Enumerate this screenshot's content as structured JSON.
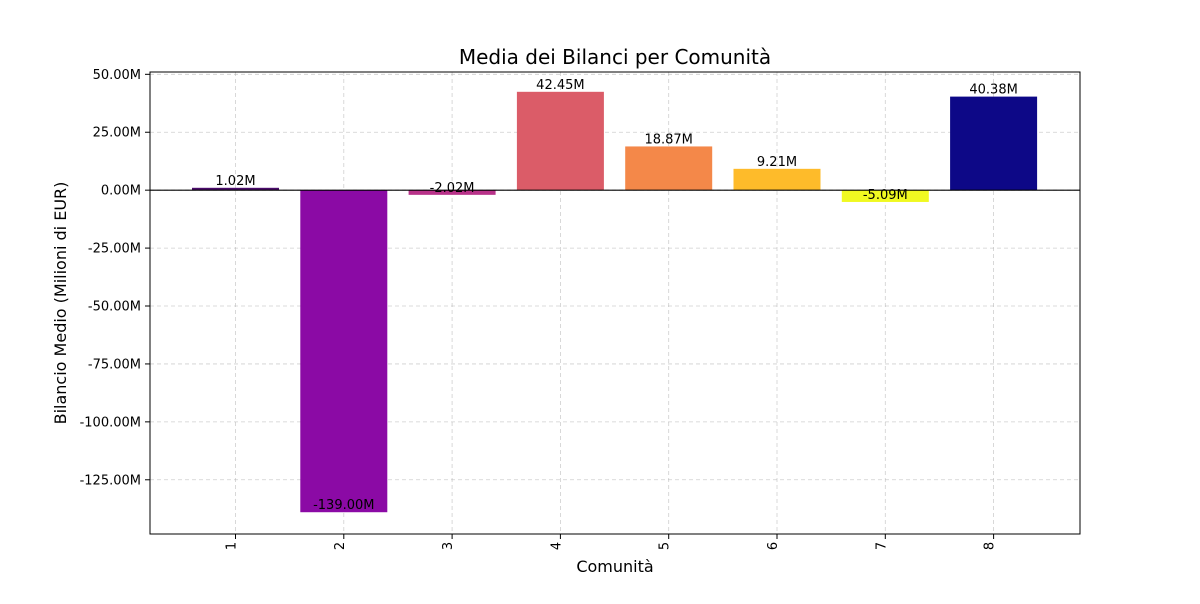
{
  "chart_data": {
    "type": "bar",
    "title": "Media dei Bilanci per Comunità",
    "xlabel": "Comunità",
    "ylabel": "Bilancio Medio (Milioni di EUR)",
    "categories": [
      "1",
      "2",
      "3",
      "4",
      "5",
      "6",
      "7",
      "8"
    ],
    "values": [
      1.02,
      -139.0,
      -2.02,
      42.45,
      18.87,
      9.21,
      -5.09,
      40.38
    ],
    "value_labels": [
      "1.02M",
      "-139.00M",
      "-2.02M",
      "42.45M",
      "18.87M",
      "9.21M",
      "-5.09M",
      "40.38M"
    ],
    "colors": [
      "#4b0c6b",
      "#8b0aa5",
      "#b83289",
      "#db5c68",
      "#f48849",
      "#febb2a",
      "#f0f921",
      "#0d0887"
    ],
    "ylim": [
      -148.4,
      51.0
    ],
    "yticks": [
      50,
      25,
      0,
      -25,
      -50,
      -75,
      -100,
      -125
    ],
    "ytick_labels": [
      "50.00M",
      "25.00M",
      "0.00M",
      "-25.00M",
      "-50.00M",
      "-75.00M",
      "-100.00M",
      "-125.00M"
    ],
    "grid": true,
    "zero_line": true
  }
}
